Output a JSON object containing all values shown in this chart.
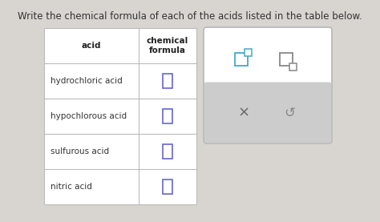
{
  "title": "Write the chemical formula of each of the acids listed in the table below.",
  "title_fontsize": 8.5,
  "title_color": "#333333",
  "bg_color": "#d8d5d0",
  "acids": [
    "hydrochloric acid",
    "hypochlorous acid",
    "sulfurous acid",
    "nitric acid"
  ],
  "col1_header": "acid",
  "col2_header": "chemical\nformula",
  "table_bg": "#ffffff",
  "table_border": "#bbbbbb",
  "header_fontsize": 7.5,
  "row_fontsize": 7.5,
  "answer_box_color": "#6666cc",
  "panel_bg": "#ffffff",
  "panel_border": "#bbbbbb",
  "panel_inner_bg": "#cccccc",
  "icon1_color": "#44aacc",
  "icon2_color": "#888888",
  "x_color": "#666666",
  "refresh_color": "#888888"
}
